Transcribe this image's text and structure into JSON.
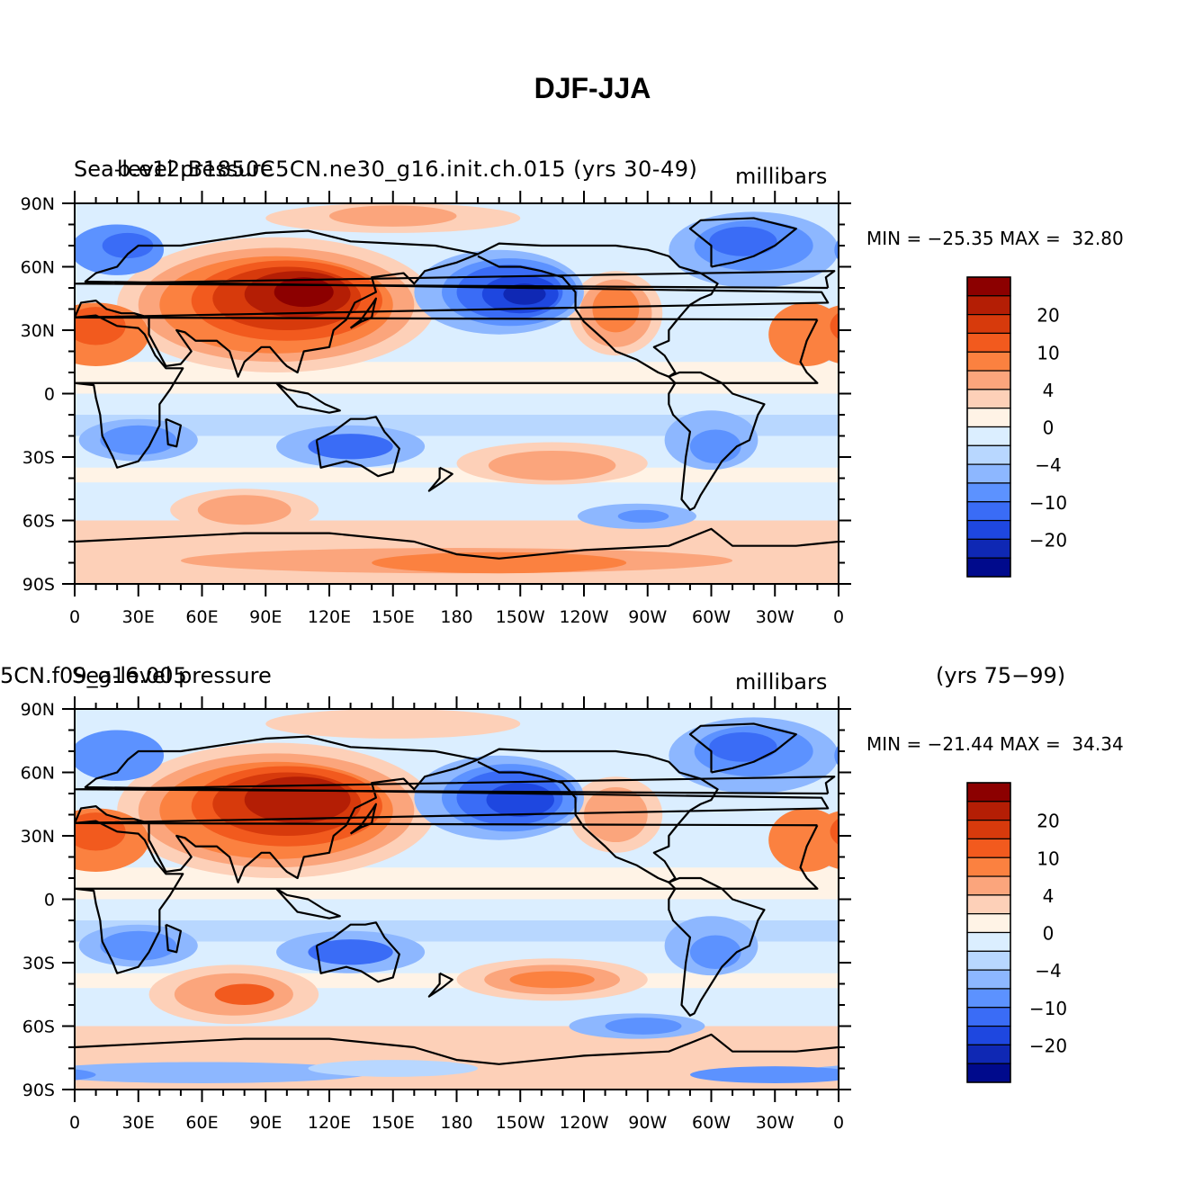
{
  "figure": {
    "title": "DJF-JJA"
  },
  "panels": [
    {
      "left_title": "Sea-level pressure",
      "overlay_title": "b.e12.B1850C5CN.ne30_g16.init.ch.015 (yrs 30-49)",
      "right_title": "millibars",
      "min_max": "MIN = −25.35 MAX =  32.80",
      "lat_labels": [
        "90N",
        "60N",
        "30N",
        "0",
        "30S",
        "60S",
        "90S"
      ],
      "lon_labels": [
        "0",
        "30E",
        "60E",
        "90E",
        "120E",
        "150E",
        "180",
        "150W",
        "120W",
        "90W",
        "60W",
        "30W",
        "0"
      ],
      "colorbar_labels": [
        "20",
        "10",
        "4",
        "0",
        "−4",
        "−10",
        "−20"
      ]
    },
    {
      "left_title": "Sea-level pressure",
      "overlay_title": "5CN.f09_g16.005",
      "right_title": "millibars",
      "extra_title": "(yrs 75−99)",
      "min_max": "MIN = −21.44 MAX =  34.34",
      "lat_labels": [
        "90N",
        "60N",
        "30N",
        "0",
        "30S",
        "60S",
        "90S"
      ],
      "lon_labels": [
        "0",
        "30E",
        "60E",
        "90E",
        "120E",
        "150E",
        "180",
        "150W",
        "120W",
        "90W",
        "60W",
        "30W",
        "0"
      ],
      "colorbar_labels": [
        "20",
        "10",
        "4",
        "0",
        "−4",
        "−10",
        "−20"
      ]
    }
  ],
  "colorbar": {
    "colors": [
      "#8c0000",
      "#b41e05",
      "#d73a0c",
      "#f25a1e",
      "#fb8140",
      "#fba57c",
      "#fdd0b8",
      "#fff3e6",
      "#dbeeff",
      "#b8d7ff",
      "#8db7ff",
      "#5c92ff",
      "#3a6cf6",
      "#1e47e0",
      "#0f28b4",
      "#000a8c"
    ]
  },
  "color_colors": {
    "land_outline": "#000000"
  },
  "chart_data": {
    "type": "heatmap",
    "title": "DJF-JJA",
    "variable": "Sea-level pressure",
    "units": "millibars",
    "lon_range": [
      0,
      360
    ],
    "lat_range": [
      -90,
      90
    ],
    "contour_levels": [
      -25,
      -20,
      -15,
      -10,
      -8,
      -6,
      -4,
      -2,
      0,
      2,
      4,
      6,
      8,
      10,
      15,
      20,
      25
    ],
    "panels": [
      {
        "case": "b.e12.B1850C5CN.ne30_g16.init.ch.015",
        "years": "30-49",
        "min": -25.35,
        "max": 32.8
      },
      {
        "case": "5CN.f09_g16.005",
        "years": "75-99",
        "min": -21.44,
        "max": 34.34
      }
    ]
  }
}
